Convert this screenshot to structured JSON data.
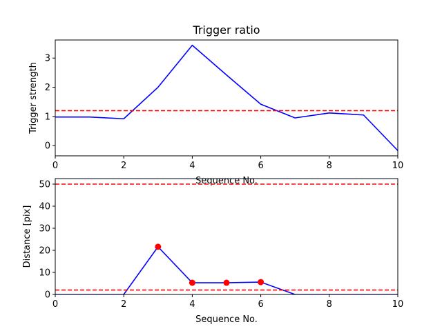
{
  "chart_data": [
    {
      "type": "line",
      "title": "Trigger ratio",
      "xlabel": "Sequence No.",
      "ylabel": "Trigger strength",
      "xlim": [
        0,
        10
      ],
      "ylim": [
        -0.35,
        3.62
      ],
      "xticks": [
        0,
        2,
        4,
        6,
        8,
        10
      ],
      "yticks": [
        0,
        1,
        2,
        3
      ],
      "x": [
        0,
        1,
        2,
        3,
        4,
        5,
        6,
        7,
        8,
        9,
        10
      ],
      "series": [
        {
          "values": [
            0.98,
            0.98,
            0.92,
            2.0,
            3.44,
            2.42,
            1.42,
            0.95,
            1.12,
            1.05,
            -0.17
          ],
          "color": "#0000ff",
          "style": "solid"
        }
      ],
      "hlines": [
        {
          "y": 1.2,
          "color": "#ff0000",
          "style": "dashed"
        }
      ],
      "grid": false
    },
    {
      "type": "line",
      "title": "",
      "xlabel": "Sequence No.",
      "ylabel": "Distance [pix]",
      "xlim": [
        0,
        10
      ],
      "ylim": [
        0,
        52.5
      ],
      "xticks": [
        0,
        2,
        4,
        6,
        8,
        10
      ],
      "yticks": [
        0,
        10,
        20,
        30,
        40,
        50
      ],
      "x": [
        0,
        1,
        2,
        3,
        4,
        5,
        6,
        7,
        8,
        9,
        10
      ],
      "series": [
        {
          "values": [
            0,
            0,
            0,
            21.6,
            5.3,
            5.3,
            5.6,
            0,
            0,
            0,
            0
          ],
          "color": "#0000ff",
          "style": "solid"
        }
      ],
      "markers": {
        "x": [
          3,
          4,
          5,
          6
        ],
        "y": [
          21.6,
          5.3,
          5.3,
          5.6
        ],
        "color": "#ff0000"
      },
      "hlines": [
        {
          "y": 50,
          "color": "#ff0000",
          "style": "dashed"
        },
        {
          "y": 2,
          "color": "#ff0000",
          "style": "dashed"
        }
      ],
      "grid": false
    }
  ]
}
